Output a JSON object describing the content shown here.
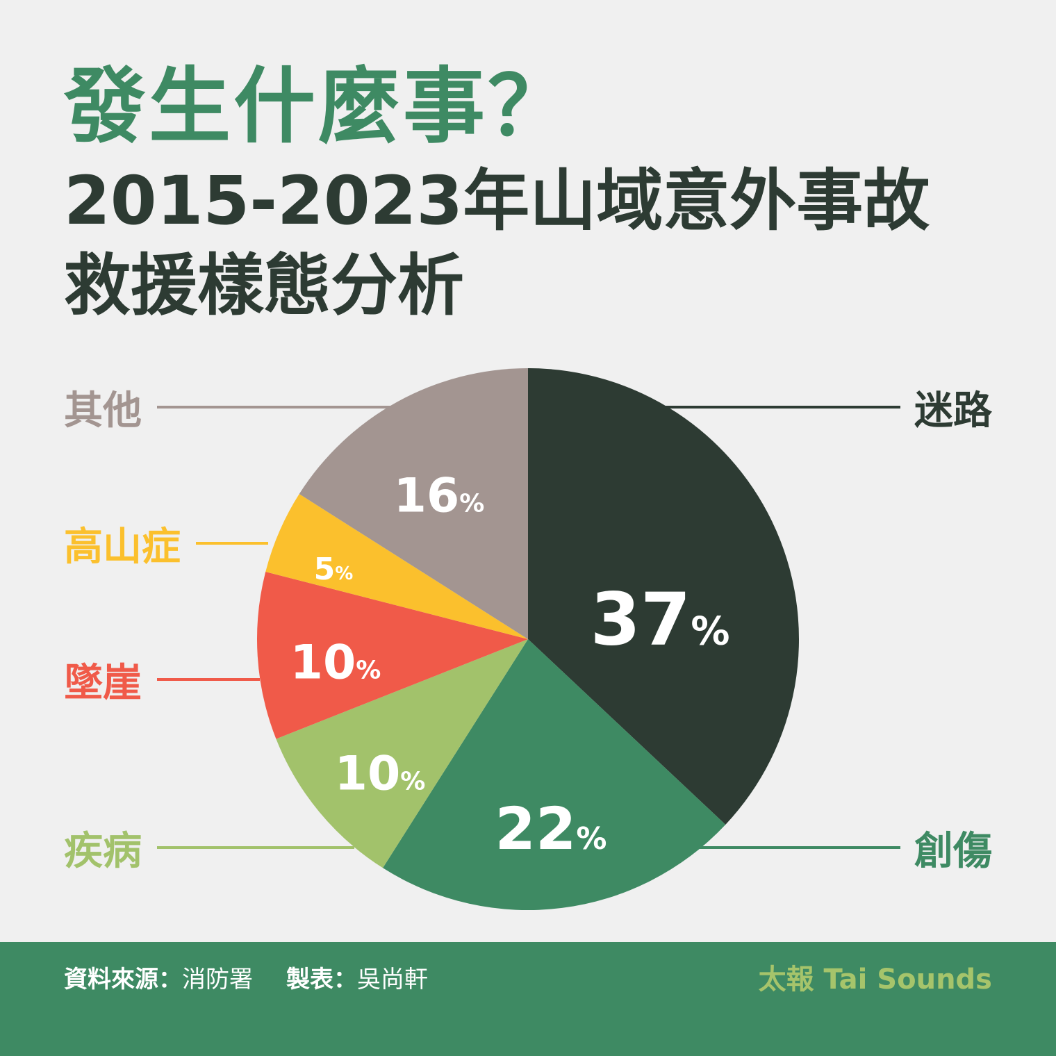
{
  "header": {
    "headline": "發生什麼事？",
    "subtitle_line1": "2015-2023年山域意外事故",
    "subtitle_line2": "救援樣態分析"
  },
  "chart_data": {
    "type": "pie",
    "unit": "%",
    "slices": [
      {
        "label": "迷路",
        "value": 37,
        "color": "#2d3b33",
        "label_color": "#2d3b33"
      },
      {
        "label": "創傷",
        "value": 22,
        "color": "#3e8a63",
        "label_color": "#3e8a63"
      },
      {
        "label": "疾病",
        "value": 10,
        "color": "#a2c26b",
        "label_color": "#a2c26b"
      },
      {
        "label": "墜崖",
        "value": 10,
        "color": "#f05a49",
        "label_color": "#f05a49"
      },
      {
        "label": "高山症",
        "value": 5,
        "color": "#fbc02d",
        "label_color": "#fbc02d"
      },
      {
        "label": "其他",
        "value": 16,
        "color": "#a39591",
        "label_color": "#a39591"
      }
    ]
  },
  "footer": {
    "source_label": "資料來源：",
    "source_value": "消防署",
    "maker_label": "製表：",
    "maker_value": "吳尚軒",
    "brand": "太報 Tai Sounds"
  }
}
